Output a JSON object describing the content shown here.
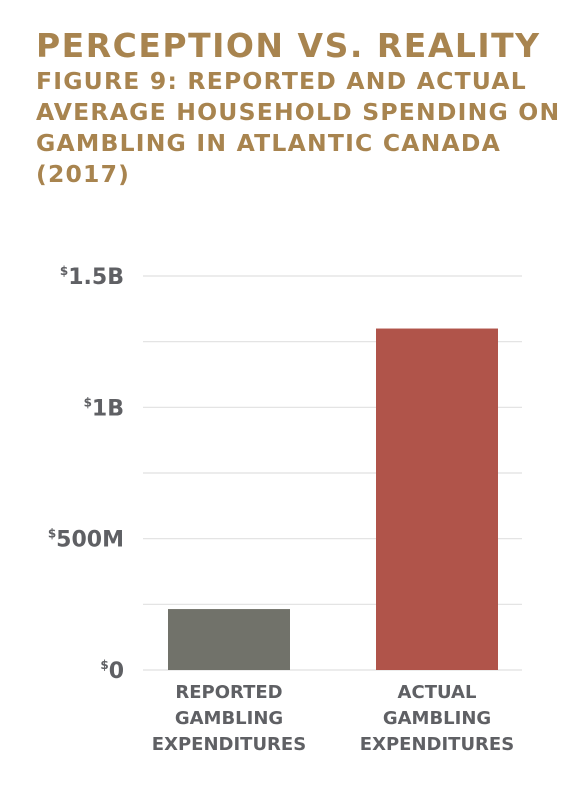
{
  "header": {
    "title": "PERCEPTION VS. REALITY",
    "subtitle": "FIGURE 9: REPORTED AND ACTUAL AVERAGE HOUSEHOLD SPENDING ON GAMBLING IN ATLANTIC CANADA (2017)"
  },
  "colors": {
    "title": "#a8844f",
    "text": "#5f6064",
    "grid": "#e1e1e1",
    "reported": "#71726a",
    "actual": "#b0544a"
  },
  "chart_data": {
    "type": "bar",
    "title": "PERCEPTION VS. REALITY",
    "subtitle": "FIGURE 9: REPORTED AND ACTUAL AVERAGE HOUSEHOLD SPENDING ON GAMBLING IN ATLANTIC CANADA (2017)",
    "categories": [
      [
        "REPORTED",
        "GAMBLING",
        "EXPENDITURES"
      ],
      [
        "ACTUAL",
        "GAMBLING",
        "EXPENDITURES"
      ]
    ],
    "values": [
      232000000,
      1300000000
    ],
    "bar_colors": [
      "#71726a",
      "#b0544a"
    ],
    "ylim": [
      0,
      1500000000
    ],
    "yticks": [
      {
        "value": 0,
        "currency": "$",
        "label": "0"
      },
      {
        "value": 500000000,
        "currency": "$",
        "label": "500M"
      },
      {
        "value": 1000000000,
        "currency": "$",
        "label": "1B"
      },
      {
        "value": 1500000000,
        "currency": "$",
        "label": "1.5B"
      }
    ],
    "minor_grid": [
      250000000,
      750000000,
      1250000000
    ],
    "grid": true,
    "xlabel": "",
    "ylabel": ""
  }
}
